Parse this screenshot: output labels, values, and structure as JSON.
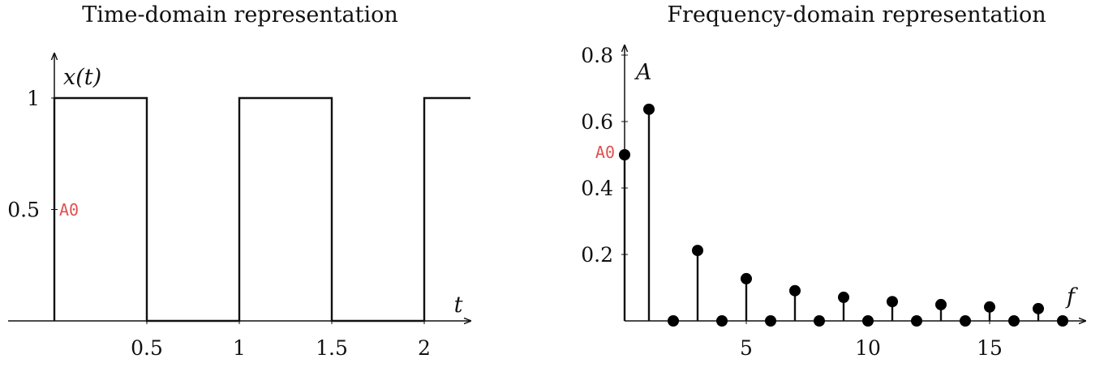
{
  "chart_data": [
    {
      "type": "line",
      "title": "Time-domain representation",
      "xlabel": "t",
      "ylabel": "x(t)",
      "xlim": [
        -0.25,
        2.25
      ],
      "ylim": [
        0,
        1.2
      ],
      "xticks": [
        0.5,
        1,
        1.5,
        2
      ],
      "xtick_labels": [
        "0.5",
        "1",
        "1.5",
        "2"
      ],
      "yticks": [
        0.5,
        1
      ],
      "ytick_labels": [
        "0.5",
        "1"
      ],
      "series": [
        {
          "x": [
            0,
            0,
            0.5,
            0.5,
            1,
            1,
            1.5,
            1.5,
            2,
            2,
            2.25
          ],
          "y": [
            0,
            1,
            1,
            0,
            0,
            1,
            1,
            0,
            0,
            1,
            1
          ]
        }
      ],
      "annotations": [
        {
          "text": "A0",
          "x": 0,
          "y": 0.5,
          "color": "#e05050"
        }
      ]
    },
    {
      "type": "scatter",
      "title": "Frequency-domain representation",
      "xlabel": "f",
      "ylabel": "A",
      "xlim": [
        0,
        19
      ],
      "ylim": [
        0,
        0.8
      ],
      "xticks": [
        5,
        10,
        15
      ],
      "xtick_labels": [
        "5",
        "10",
        "15"
      ],
      "yticks": [
        0.2,
        0.4,
        0.6,
        0.8
      ],
      "ytick_labels": [
        "0.2",
        "0.4",
        "0.6",
        "0.8"
      ],
      "stem": true,
      "series": [
        {
          "x": [
            0,
            1,
            2,
            3,
            4,
            5,
            6,
            7,
            8,
            9,
            10,
            11,
            12,
            13,
            14,
            15,
            16,
            17,
            18
          ],
          "y": [
            0.5,
            0.637,
            0,
            0.212,
            0,
            0.127,
            0,
            0.091,
            0,
            0.071,
            0,
            0.058,
            0,
            0.049,
            0,
            0.042,
            0,
            0.037,
            0
          ]
        }
      ],
      "annotations": [
        {
          "text": "A0",
          "x": 0,
          "y": 0.5,
          "color": "#e05050"
        }
      ]
    }
  ]
}
